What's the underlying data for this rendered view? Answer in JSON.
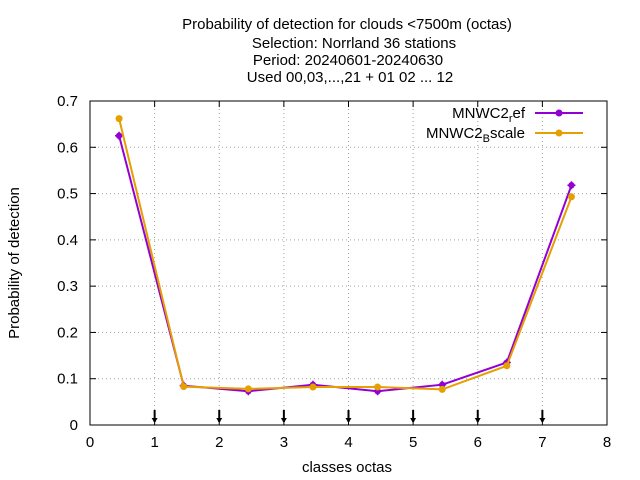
{
  "chart_data": {
    "type": "line",
    "title_lines": [
      "Probability of detection  for clouds <7500m (octas)",
      "Selection: Norrland     36 stations",
      "Period: 20240601-20240630",
      "Used 00,03,...,21 + 01 02 ... 12"
    ],
    "xlabel": "classes octas",
    "ylabel": "Probability of detection",
    "xlim": [
      0,
      8
    ],
    "ylim": [
      0,
      0.7
    ],
    "xticks": [
      "0",
      "1",
      "2",
      "3",
      "4",
      "5",
      "6",
      "7",
      "8"
    ],
    "yticks": [
      "0",
      "0.1",
      "0.2",
      "0.3",
      "0.4",
      "0.5",
      "0.6",
      "0.7"
    ],
    "grid": true,
    "legend_position": "top-right",
    "class_markers_x": [
      1,
      2,
      3,
      4,
      5,
      6,
      7
    ],
    "x": [
      0.45,
      1.45,
      2.45,
      3.45,
      4.45,
      5.45,
      6.45,
      7.45
    ],
    "series": [
      {
        "name": "MNWC2ref",
        "legend_main": "MNWC2",
        "legend_sub": "r",
        "legend_rest": "ef",
        "color": "#9400d3",
        "marker": "plus",
        "values": [
          0.625,
          0.085,
          0.073,
          0.087,
          0.073,
          0.087,
          0.135,
          0.518
        ]
      },
      {
        "name": "MNWC2Bscale",
        "legend_main": "MNWC2",
        "legend_sub": "B",
        "legend_rest": "scale",
        "color": "#e69f00",
        "marker": "circle",
        "values": [
          0.662,
          0.083,
          0.078,
          0.082,
          0.082,
          0.077,
          0.128,
          0.493
        ]
      }
    ]
  }
}
